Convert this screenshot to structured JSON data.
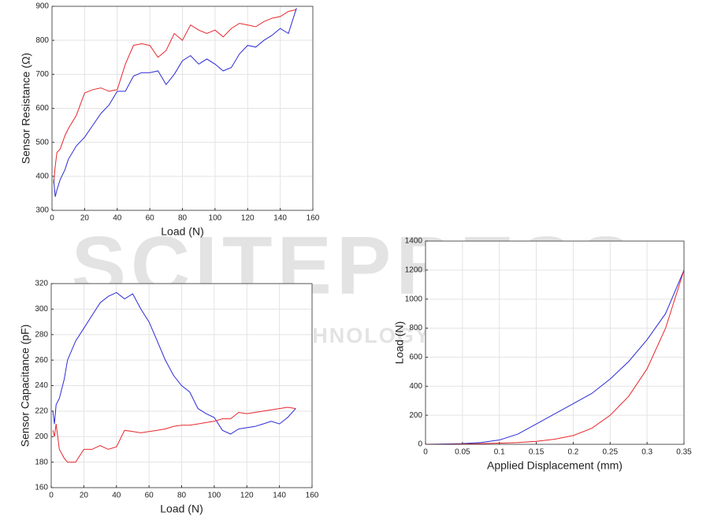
{
  "chart_data": [
    {
      "type": "line",
      "xlabel": "Load (N)",
      "ylabel": "Sensor Resistance (Ω)",
      "xlim": [
        0,
        160
      ],
      "xticks": [
        0,
        20,
        40,
        60,
        80,
        100,
        120,
        140,
        160
      ],
      "ylim": [
        300,
        900
      ],
      "yticks": [
        300,
        400,
        500,
        600,
        700,
        800,
        900
      ],
      "grid": true,
      "x": [
        1,
        2,
        3,
        5,
        8,
        10,
        15,
        20,
        25,
        30,
        35,
        40,
        45,
        50,
        55,
        60,
        65,
        70,
        75,
        80,
        85,
        90,
        95,
        100,
        105,
        110,
        115,
        120,
        125,
        130,
        135,
        140,
        145,
        150
      ],
      "series": [
        {
          "color": "#e8262b",
          "values": [
            380,
            430,
            470,
            480,
            520,
            540,
            580,
            645,
            655,
            660,
            650,
            655,
            730,
            785,
            790,
            785,
            750,
            770,
            820,
            800,
            845,
            830,
            820,
            830,
            810,
            835,
            850,
            845,
            840,
            855,
            865,
            870,
            885,
            890
          ]
        },
        {
          "color": "#2b2bd6",
          "values": [
            390,
            340,
            360,
            390,
            420,
            450,
            490,
            515,
            550,
            585,
            610,
            650,
            650,
            695,
            705,
            705,
            710,
            670,
            700,
            740,
            755,
            730,
            745,
            730,
            710,
            720,
            760,
            785,
            780,
            800,
            815,
            835,
            820,
            895
          ]
        }
      ]
    },
    {
      "type": "line",
      "xlabel": "Load (N)",
      "ylabel": "Sensor Capacitance (pF)",
      "xlim": [
        0,
        160
      ],
      "xticks": [
        0,
        20,
        40,
        60,
        80,
        100,
        120,
        140,
        160
      ],
      "ylim": [
        160,
        320
      ],
      "yticks": [
        160,
        180,
        200,
        220,
        240,
        260,
        280,
        300,
        320
      ],
      "grid": true,
      "x": [
        1,
        2,
        3,
        5,
        8,
        10,
        15,
        20,
        25,
        30,
        35,
        40,
        45,
        50,
        55,
        60,
        65,
        70,
        75,
        80,
        85,
        90,
        95,
        100,
        105,
        110,
        115,
        120,
        125,
        130,
        135,
        140,
        145,
        150
      ],
      "series": [
        {
          "color": "#2b2bd6",
          "values": [
            220,
            210,
            225,
            230,
            245,
            260,
            275,
            285,
            295,
            305,
            310,
            313,
            308,
            312,
            300,
            290,
            275,
            260,
            248,
            240,
            235,
            222,
            218,
            215,
            205,
            202,
            206,
            207,
            208,
            210,
            212,
            210,
            215,
            222
          ]
        },
        {
          "color": "#e8262b",
          "values": [
            205,
            200,
            210,
            190,
            183,
            180,
            180,
            190,
            190,
            193,
            190,
            192,
            205,
            204,
            203,
            204,
            205,
            206,
            208,
            209,
            209,
            210,
            211,
            212,
            214,
            214,
            219,
            218,
            219,
            220,
            221,
            222,
            223,
            222
          ]
        }
      ]
    },
    {
      "type": "line",
      "xlabel": "Applied Displacement (mm)",
      "ylabel": "Load (N)",
      "xlim": [
        0,
        0.35
      ],
      "xticks": [
        0,
        0.05,
        0.1,
        0.15,
        0.2,
        0.25,
        0.3,
        0.35
      ],
      "ylim": [
        0,
        1400
      ],
      "yticks": [
        0,
        200,
        400,
        600,
        800,
        1000,
        1200,
        1400
      ],
      "grid": true,
      "x": [
        0,
        0.025,
        0.05,
        0.075,
        0.1,
        0.125,
        0.15,
        0.175,
        0.2,
        0.225,
        0.25,
        0.275,
        0.3,
        0.325,
        0.35
      ],
      "series": [
        {
          "color": "#2b2bd6",
          "values": [
            0,
            2,
            5,
            12,
            30,
            70,
            140,
            210,
            280,
            350,
            450,
            570,
            720,
            900,
            1200
          ]
        },
        {
          "color": "#e8262b",
          "values": [
            0,
            0,
            2,
            5,
            8,
            12,
            20,
            35,
            60,
            110,
            200,
            330,
            520,
            800,
            1200
          ]
        }
      ]
    }
  ],
  "watermark": {
    "title": "SCITEPRESS",
    "subtitle": "SCIENCE AND TECHNOLOGY PUBLICATIONS"
  }
}
